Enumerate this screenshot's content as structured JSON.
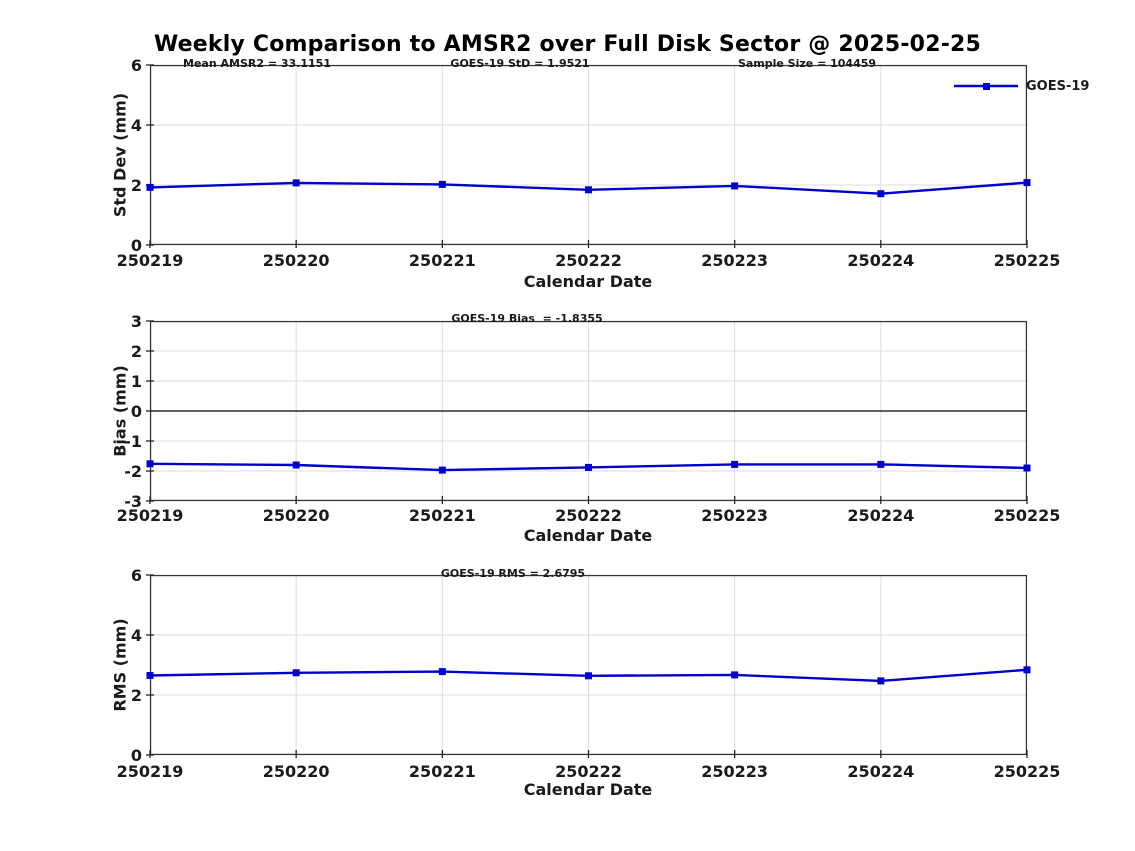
{
  "title": "Weekly Comparison to AMSR2 over Full Disk Sector @ 2025-02-25",
  "legend": {
    "label": "GOES-19"
  },
  "colors": {
    "line": "#0000cc",
    "grid": "#dcdcdc",
    "axis": "#333333",
    "tick": "#222222",
    "zero_line": "#000000",
    "text": "#1a1a1a"
  },
  "chart_data": [
    {
      "type": "line",
      "categories": [
        "250219",
        "250220",
        "250221",
        "250222",
        "250223",
        "250224",
        "250225"
      ],
      "series": [
        {
          "name": "GOES-19",
          "values": [
            1.92,
            2.07,
            2.02,
            1.84,
            1.97,
            1.71,
            2.08
          ]
        }
      ],
      "xlabel": "Calendar Date",
      "ylabel": "Std Dev (mm)",
      "ylim": [
        0,
        6
      ],
      "yticks": [
        0,
        2,
        4,
        6
      ],
      "grid": true,
      "zero_line": false,
      "legend_position": "top-right-outside",
      "marker": "square",
      "annotations": [
        "Mean AMSR2 = 33.1151",
        "GOES-19 StD = 1.9521",
        "Sample Size = 104459"
      ]
    },
    {
      "type": "line",
      "categories": [
        "250219",
        "250220",
        "250221",
        "250222",
        "250223",
        "250224",
        "250225"
      ],
      "series": [
        {
          "name": "GOES-19",
          "values": [
            -1.76,
            -1.8,
            -1.97,
            -1.88,
            -1.78,
            -1.78,
            -1.9
          ]
        }
      ],
      "xlabel": "Calendar Date",
      "ylabel": "Bias (mm)",
      "ylim": [
        -3,
        3
      ],
      "yticks": [
        -3,
        -2,
        -1,
        0,
        1,
        2,
        3
      ],
      "grid": true,
      "zero_line": true,
      "marker": "square",
      "annotations": [
        "GOES-19 Bias  = -1.8355"
      ]
    },
    {
      "type": "line",
      "categories": [
        "250219",
        "250220",
        "250221",
        "250222",
        "250223",
        "250224",
        "250225"
      ],
      "series": [
        {
          "name": "GOES-19",
          "values": [
            2.65,
            2.74,
            2.78,
            2.64,
            2.67,
            2.47,
            2.84
          ]
        }
      ],
      "xlabel": "Calendar Date",
      "ylabel": "RMS (mm)",
      "ylim": [
        0,
        6
      ],
      "yticks": [
        0,
        2,
        4,
        6
      ],
      "grid": true,
      "zero_line": false,
      "marker": "square",
      "annotations": [
        "GOES-19 RMS = 2.6795"
      ]
    }
  ]
}
